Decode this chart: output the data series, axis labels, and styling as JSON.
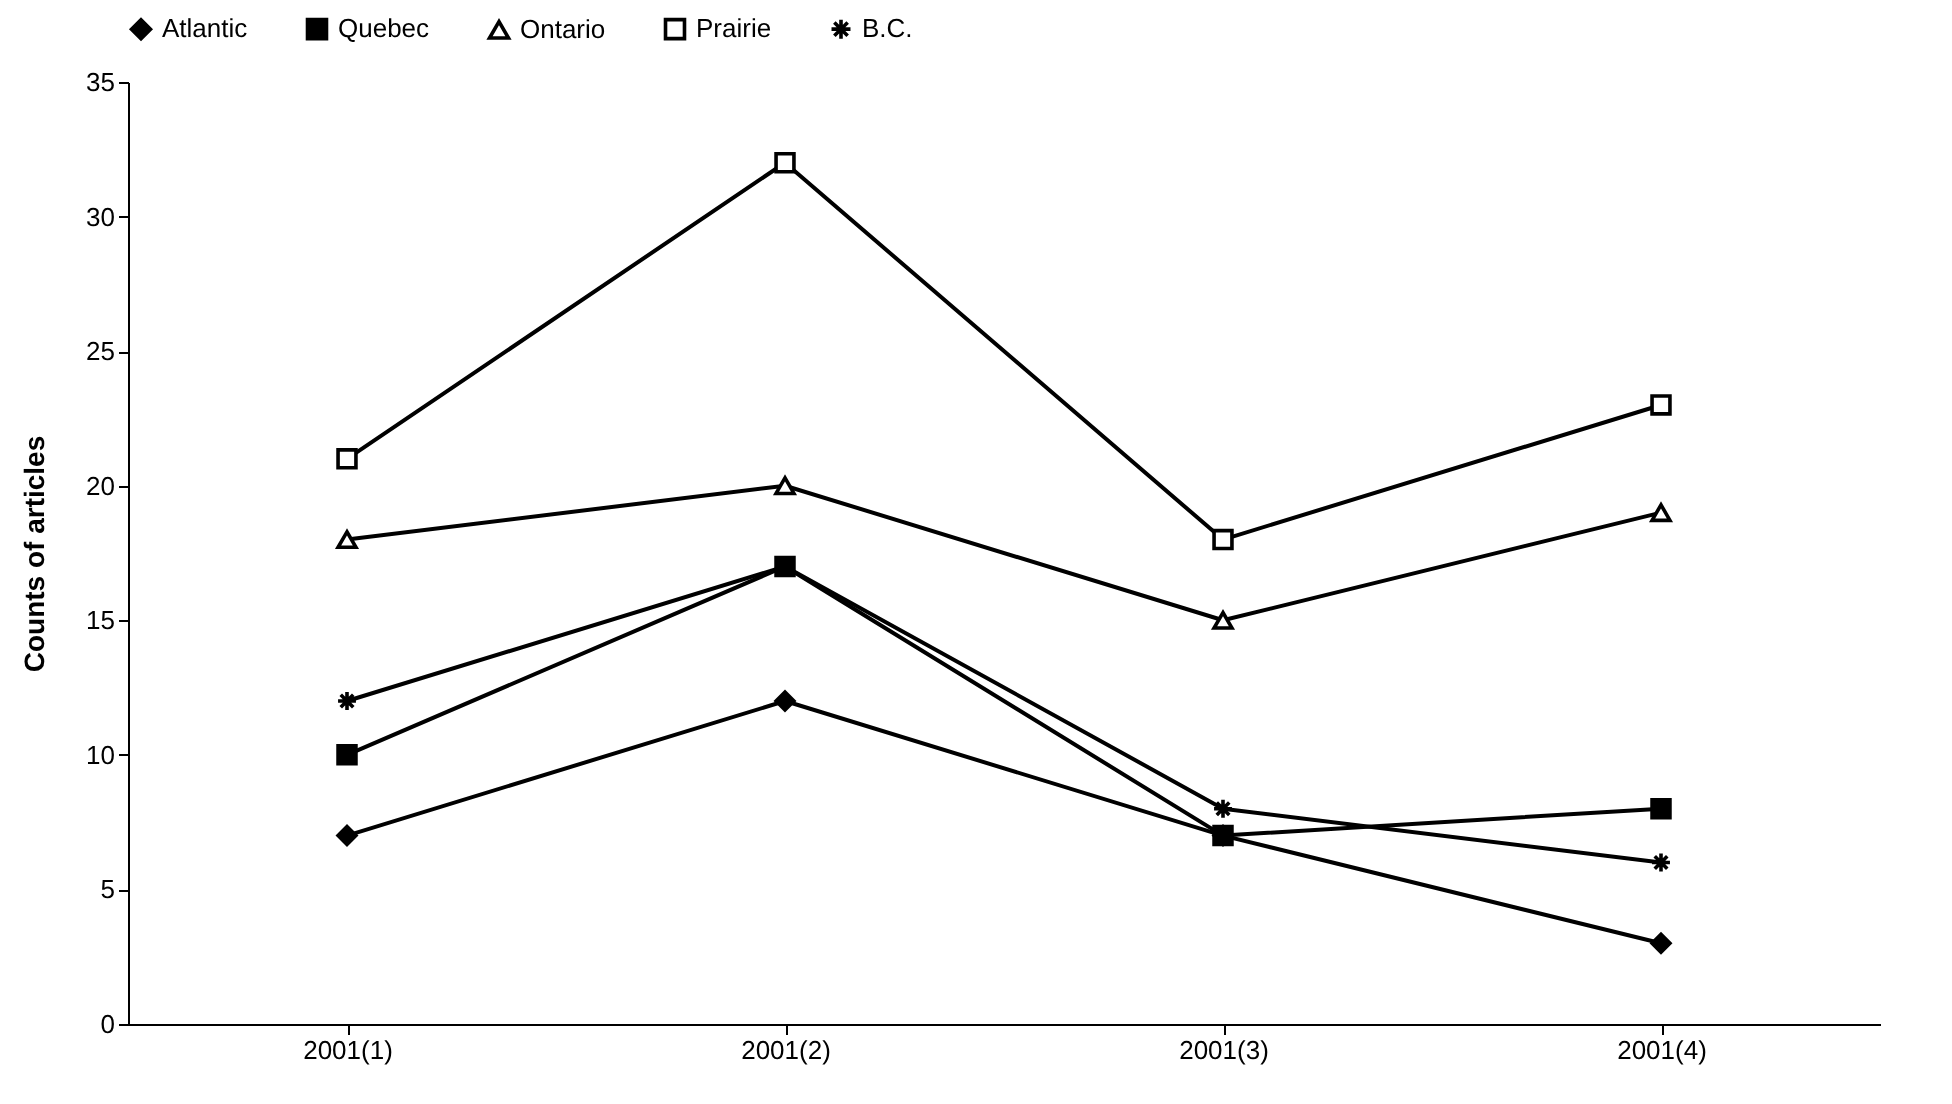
{
  "chart_data": {
    "type": "line",
    "ylabel": "Counts of articles",
    "categories": [
      "2001(1)",
      "2001(2)",
      "2001(3)",
      "2001(4)"
    ],
    "series": [
      {
        "name": "Atlantic",
        "color": "#000000",
        "marker": "diamond",
        "values": [
          7,
          12,
          7,
          3
        ]
      },
      {
        "name": "Quebec",
        "color": "#000000",
        "marker": "square",
        "values": [
          10,
          17,
          7,
          8
        ]
      },
      {
        "name": "Ontario",
        "color": "#000000",
        "marker": "triangle",
        "values": [
          18,
          20,
          15,
          19
        ]
      },
      {
        "name": "Prairie",
        "color": "#000000",
        "marker": "square",
        "values": [
          21,
          32,
          18,
          23
        ]
      },
      {
        "name": "B.C.",
        "color": "#000000",
        "marker": "cross",
        "values": [
          12,
          17,
          8,
          6
        ]
      }
    ],
    "ylim": [
      0,
      35
    ],
    "yticks": [
      0,
      5,
      10,
      15,
      20,
      25,
      30,
      35
    ],
    "grid": false,
    "legend": "top",
    "line_style": "solid"
  }
}
